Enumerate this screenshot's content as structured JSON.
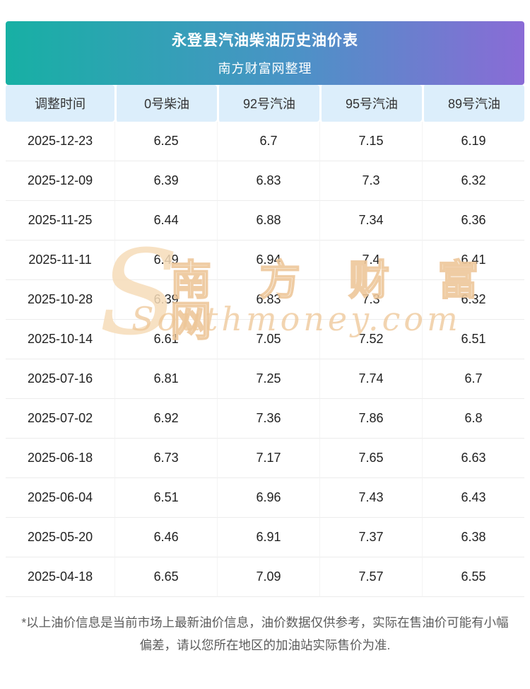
{
  "page": {
    "title": "永登县汽油柴油历史油价表",
    "subtitle": "南方财富网整理",
    "footnote": "*以上油价信息是当前市场上最新油价信息，油价数据仅供参考，实际在售油价可能有小幅偏差，请以您所在地区的加油站实际售价为准."
  },
  "watermark": {
    "logo": "S",
    "cn": "南 方 财 富 网",
    "en": "Southmoney.com"
  },
  "colors": {
    "banner_gradient_start": "#17b0a4",
    "banner_gradient_end": "#8a6bd6",
    "table_header_bg": "#dceefb",
    "row_border": "#ececec",
    "watermark": "#eec496",
    "footnote_text": "#5b5b5b"
  },
  "chart_data": {
    "type": "table",
    "title": "永登县汽油柴油历史油价表",
    "subtitle": "南方财富网整理",
    "columns": [
      "调整时间",
      "0号柴油",
      "92号汽油",
      "95号汽油",
      "89号汽油"
    ],
    "rows": [
      [
        "2025-12-23",
        "6.25",
        "6.7",
        "7.15",
        "6.19"
      ],
      [
        "2025-12-09",
        "6.39",
        "6.83",
        "7.3",
        "6.32"
      ],
      [
        "2025-11-25",
        "6.44",
        "6.88",
        "7.34",
        "6.36"
      ],
      [
        "2025-11-11",
        "6.49",
        "6.94",
        "7.4",
        "6.41"
      ],
      [
        "2025-10-28",
        "6.39",
        "6.83",
        "7.3",
        "6.32"
      ],
      [
        "2025-10-14",
        "6.61",
        "7.05",
        "7.52",
        "6.51"
      ],
      [
        "2025-07-16",
        "6.81",
        "7.25",
        "7.74",
        "6.7"
      ],
      [
        "2025-07-02",
        "6.92",
        "7.36",
        "7.86",
        "6.8"
      ],
      [
        "2025-06-18",
        "6.73",
        "7.17",
        "7.65",
        "6.63"
      ],
      [
        "2025-06-04",
        "6.51",
        "6.96",
        "7.43",
        "6.43"
      ],
      [
        "2025-05-20",
        "6.46",
        "6.91",
        "7.37",
        "6.38"
      ],
      [
        "2025-04-18",
        "6.65",
        "7.09",
        "7.57",
        "6.55"
      ]
    ]
  }
}
